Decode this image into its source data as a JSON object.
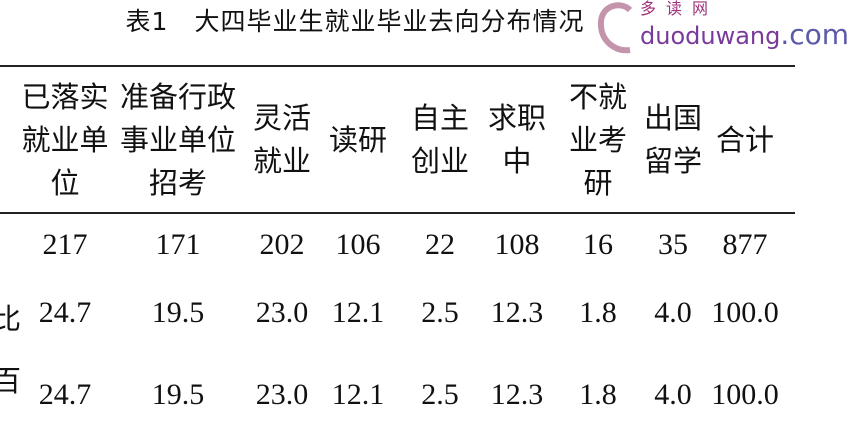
{
  "title": {
    "number": "表1",
    "text": "大四毕业生就业毕业去向分布情况"
  },
  "table": {
    "headers": [
      [
        "已落实",
        "就业单",
        "位"
      ],
      [
        "准备行政",
        "事业单位",
        "招考"
      ],
      [
        "灵活",
        "就业"
      ],
      [
        "读研"
      ],
      [
        "自主",
        "创业"
      ],
      [
        "求职",
        "中"
      ],
      [
        "不就",
        "业考",
        "研"
      ],
      [
        "出国",
        "留学"
      ],
      [
        "合计"
      ]
    ],
    "rows": [
      {
        "label": "",
        "values": [
          "217",
          "171",
          "202",
          "106",
          "22",
          "108",
          "16",
          "35",
          "877"
        ]
      },
      {
        "label": "比",
        "values": [
          "24.7",
          "19.5",
          "23.0",
          "12.1",
          "2.5",
          "12.3",
          "1.8",
          "4.0",
          "100.0"
        ]
      },
      {
        "label": "百",
        "values": [
          "24.7",
          "19.5",
          "23.0",
          "12.1",
          "2.5",
          "12.3",
          "1.8",
          "4.0",
          "100.0"
        ]
      }
    ]
  },
  "watermark": {
    "cn": "多读网",
    "en": "duoduwang",
    "suffix": ".com"
  }
}
